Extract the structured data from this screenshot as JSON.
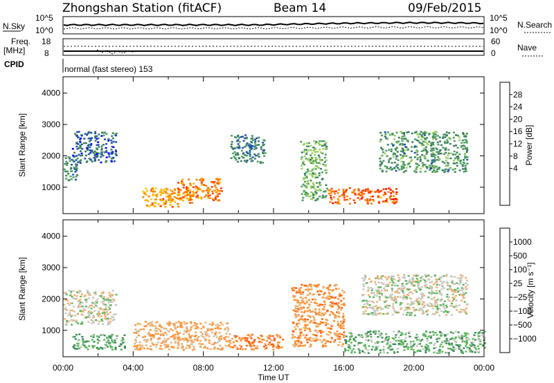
{
  "header": {
    "station": "Zhongshan Station (fitACF)",
    "beam": "Beam 14",
    "date": "09/Feb/2015"
  },
  "summary": {
    "nsky_label": "N.Sky",
    "nsky_ticks": [
      "10^5",
      "10^0"
    ],
    "nsearch_label": "N.Search",
    "nsearch_ticks": [
      "10^5",
      "10^0"
    ],
    "freq_label_1": "Freq.",
    "freq_label_2": "[MHz]",
    "freq_ticks": [
      "18",
      "8"
    ],
    "nave_label": "Nave",
    "nave_ticks": [
      "60",
      "0"
    ],
    "cpid_label": "CPID",
    "cpid_text": "normal (fast stereo) 153"
  },
  "panels": {
    "yaxis_label": "Slant Range [km]",
    "yticks": [
      "4000",
      "3000",
      "2000",
      "1000"
    ],
    "xticks": [
      "00:00",
      "04:00",
      "08:00",
      "12:00",
      "16:00",
      "20:00",
      "00:00"
    ],
    "xlabel": "Time UT"
  },
  "power_scale": {
    "label": "Power [dB]",
    "ticks": [
      "28",
      "24",
      "20",
      "16",
      "12",
      "8",
      "4"
    ],
    "colors": [
      "#ff0000",
      "#ff4000",
      "#ff8000",
      "#ffb000",
      "#e8d000",
      "#9bcf60",
      "#4ea060",
      "#3c8060",
      "#2050b0",
      "#0000ff"
    ]
  },
  "velocity_scale": {
    "label": "Velocity [m s⁻¹]",
    "ticks": [
      "1000",
      "500",
      "100",
      "25",
      "−25",
      "−100",
      "−500",
      "−1000"
    ],
    "colors": [
      "#2040c0",
      "#3070b0",
      "#3c8c5c",
      "#60b860",
      "#c8c8c0",
      "#f0b070",
      "#ff9030",
      "#ff6010",
      "#ff0000"
    ]
  },
  "chart_data": [
    {
      "type": "heatmap",
      "title": "Power",
      "xlabel": "Time UT",
      "ylabel": "Slant Range [km]",
      "xlim": [
        "00:00",
        "24:00"
      ],
      "ylim": [
        180,
        4500
      ],
      "colorbar": {
        "label": "Power [dB]",
        "range": [
          0,
          32
        ]
      },
      "regions": [
        {
          "t0": 0.0,
          "t1": 0.8,
          "r0": 1200,
          "r1": 2000,
          "value": 8
        },
        {
          "t0": 0.5,
          "t1": 3.0,
          "r0": 1800,
          "r1": 2800,
          "value": 6
        },
        {
          "t0": 4.5,
          "t1": 7.5,
          "r0": 400,
          "r1": 1000,
          "value": 22
        },
        {
          "t0": 6.5,
          "t1": 9.0,
          "r0": 600,
          "r1": 1300,
          "value": 24
        },
        {
          "t0": 9.5,
          "t1": 11.5,
          "r0": 1800,
          "r1": 2700,
          "value": 8
        },
        {
          "t0": 13.5,
          "t1": 15.0,
          "r0": 600,
          "r1": 2500,
          "value": 12
        },
        {
          "t0": 15.0,
          "t1": 19.0,
          "r0": 500,
          "r1": 1000,
          "value": 26
        },
        {
          "t0": 18.0,
          "t1": 23.0,
          "r0": 1500,
          "r1": 2800,
          "value": 10
        }
      ]
    },
    {
      "type": "heatmap",
      "title": "Velocity",
      "xlabel": "Time UT",
      "ylabel": "Slant Range [km]",
      "xlim": [
        "00:00",
        "24:00"
      ],
      "ylim": [
        180,
        4500
      ],
      "colorbar": {
        "label": "Velocity [m s⁻¹]",
        "range": [
          -1000,
          1000
        ]
      },
      "regions": [
        {
          "t0": 0.0,
          "t1": 3.0,
          "r0": 1200,
          "r1": 2300,
          "value": 0
        },
        {
          "t0": 0.5,
          "t1": 3.5,
          "r0": 400,
          "r1": 900,
          "value": 300
        },
        {
          "t0": 4.0,
          "t1": 9.5,
          "r0": 400,
          "r1": 1300,
          "value": -300
        },
        {
          "t0": 9.5,
          "t1": 12.5,
          "r0": 400,
          "r1": 900,
          "value": -500
        },
        {
          "t0": 13.0,
          "t1": 16.0,
          "r0": 500,
          "r1": 2500,
          "value": -400
        },
        {
          "t0": 16.0,
          "t1": 24.0,
          "r0": 300,
          "r1": 1000,
          "value": 250
        },
        {
          "t0": 17.0,
          "t1": 23.0,
          "r0": 1500,
          "r1": 2800,
          "value": 0
        }
      ]
    }
  ]
}
